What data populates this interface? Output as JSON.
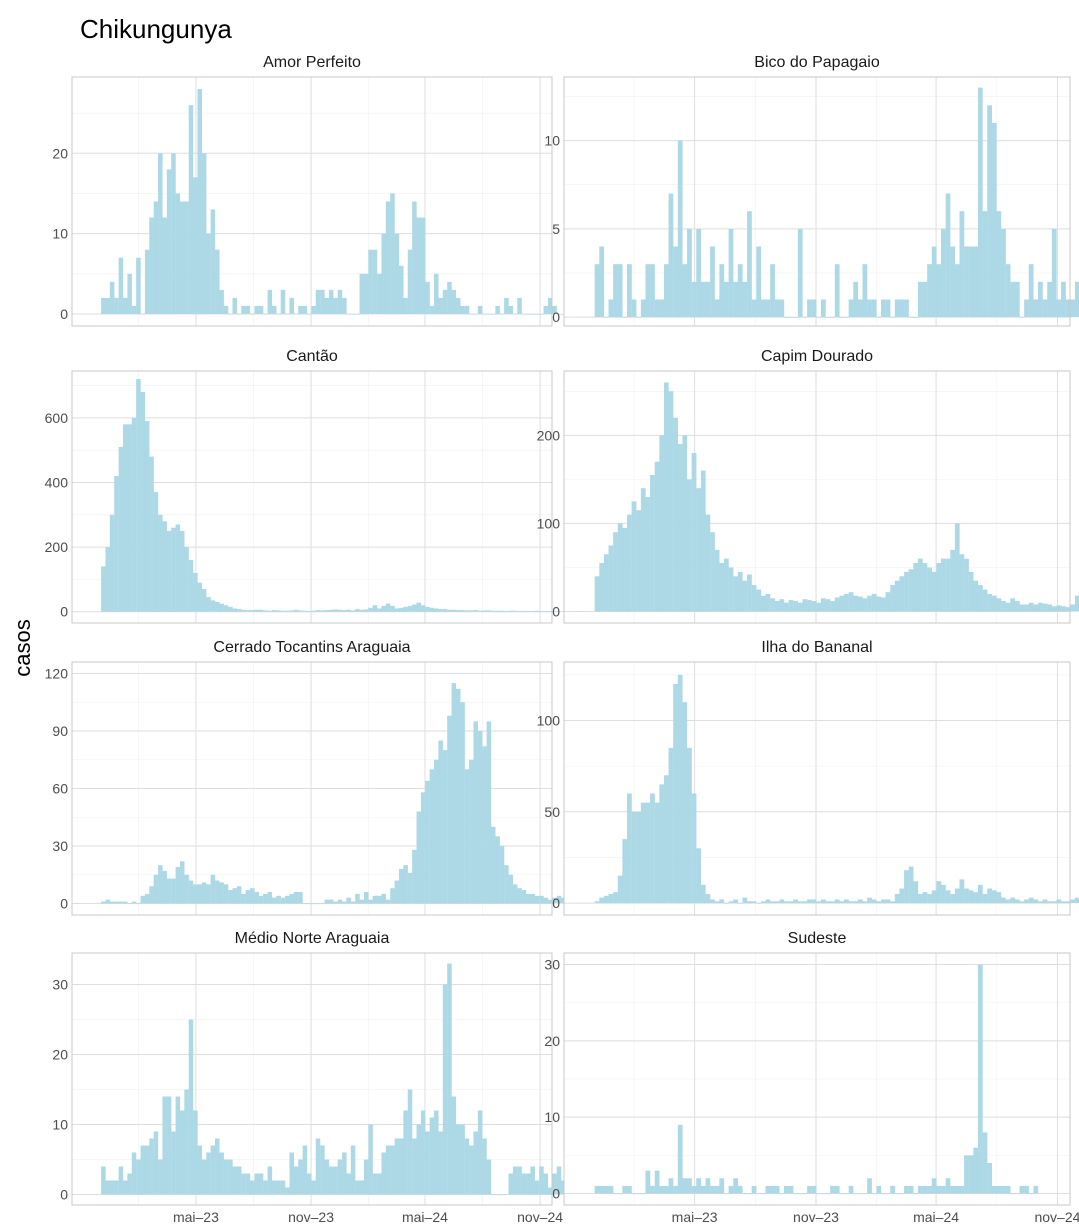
{
  "figure": {
    "title": "Chikungunya",
    "ylabel": "casos"
  },
  "chart_data": {
    "type": "bar",
    "title": "Chikungunya",
    "ylabel": "casos",
    "xlabel": "",
    "x_axis": {
      "ticks": [
        "mai–23",
        "nov–23",
        "mai–24",
        "nov–24"
      ],
      "tick_dates": [
        "2023-05-01",
        "2023-11-01",
        "2024-05-01",
        "2024-11-01"
      ],
      "range": [
        "2022-10-15",
        "2024-11-20"
      ],
      "start_week": "2022-12-04",
      "step_days": 7
    },
    "bar_color": "#ADD8E6",
    "grid": true,
    "panels": [
      {
        "name": "Amor Perfeito",
        "ylim": [
          -1.5,
          29.5
        ],
        "yticks": [
          0,
          10,
          20
        ],
        "values": [
          2,
          2,
          4,
          2,
          7,
          2,
          5,
          1,
          7,
          0,
          8,
          12,
          14,
          20,
          12,
          18,
          20,
          15,
          14,
          14,
          26,
          17,
          28,
          20,
          10,
          13,
          8,
          3,
          1,
          0,
          2,
          0,
          1,
          1,
          0,
          1,
          1,
          0,
          3,
          1,
          0,
          3,
          0,
          2,
          0,
          1,
          1,
          0,
          1,
          3,
          3,
          2,
          3,
          2,
          3,
          2,
          0,
          0,
          0,
          5,
          5,
          8,
          8,
          5,
          10,
          14,
          15,
          10,
          6,
          2,
          8,
          14,
          12,
          12,
          4,
          1,
          5,
          2,
          3,
          4,
          3,
          2,
          1,
          1,
          0,
          0,
          1,
          0,
          0,
          0,
          1,
          0,
          2,
          1,
          0,
          2,
          0,
          0,
          0,
          0,
          0,
          1,
          2,
          1,
          0,
          0,
          0,
          0
        ]
      },
      {
        "name": "Bico do Papagaio",
        "ylim": [
          -0.5,
          13.6
        ],
        "yticks": [
          0,
          5,
          10
        ],
        "values": [
          3,
          4,
          0,
          1,
          3,
          3,
          0,
          3,
          1,
          0,
          1,
          3,
          3,
          1,
          1,
          3,
          7,
          4,
          10,
          3,
          5,
          2,
          5,
          2,
          2,
          4,
          1,
          3,
          2,
          5,
          2,
          3,
          2,
          6,
          1,
          4,
          1,
          1,
          3,
          1,
          1,
          0,
          0,
          0,
          5,
          0,
          1,
          1,
          0,
          1,
          0,
          0,
          3,
          0,
          0,
          1,
          2,
          1,
          3,
          1,
          1,
          0,
          1,
          1,
          0,
          1,
          1,
          1,
          0,
          0,
          2,
          2,
          3,
          4,
          3,
          5,
          7,
          4,
          3,
          6,
          4,
          4,
          4,
          13,
          6,
          12,
          11,
          6,
          5,
          3,
          2,
          2,
          0,
          1,
          3,
          1,
          2,
          1,
          2,
          5,
          1,
          2,
          1,
          1,
          2,
          2,
          2,
          4,
          1,
          0
        ]
      },
      {
        "name": "Cantão",
        "ylim": [
          -35,
          745
        ],
        "yticks": [
          0,
          200,
          400,
          600
        ],
        "values": [
          140,
          200,
          300,
          420,
          510,
          580,
          580,
          600,
          720,
          680,
          590,
          480,
          370,
          300,
          280,
          250,
          260,
          270,
          250,
          200,
          160,
          120,
          90,
          70,
          45,
          35,
          30,
          25,
          20,
          15,
          10,
          8,
          6,
          5,
          5,
          6,
          6,
          4,
          3,
          5,
          4,
          3,
          3,
          4,
          6,
          4,
          3,
          2,
          3,
          5,
          4,
          5,
          6,
          7,
          6,
          5,
          6,
          4,
          8,
          6,
          7,
          12,
          20,
          10,
          18,
          25,
          18,
          10,
          12,
          15,
          18,
          22,
          28,
          20,
          15,
          12,
          10,
          8,
          8,
          6,
          6,
          5,
          5,
          4,
          4,
          5,
          3,
          4,
          4,
          3,
          3,
          3,
          2,
          3,
          3,
          2,
          2,
          2,
          2,
          3,
          2,
          2,
          2,
          2,
          2,
          2,
          1,
          1,
          1,
          1
        ]
      },
      {
        "name": "Capim Dourado",
        "ylim": [
          -13,
          273
        ],
        "yticks": [
          0,
          100,
          200
        ],
        "values": [
          40,
          55,
          65,
          75,
          90,
          100,
          95,
          110,
          125,
          115,
          140,
          130,
          155,
          170,
          200,
          260,
          250,
          220,
          190,
          200,
          150,
          180,
          140,
          160,
          110,
          90,
          70,
          55,
          60,
          50,
          40,
          45,
          35,
          42,
          30,
          25,
          18,
          20,
          15,
          12,
          14,
          10,
          13,
          12,
          10,
          14,
          13,
          12,
          10,
          15,
          14,
          12,
          16,
          18,
          20,
          22,
          18,
          17,
          15,
          18,
          20,
          17,
          16,
          22,
          30,
          35,
          40,
          45,
          48,
          55,
          60,
          55,
          50,
          45,
          55,
          60,
          60,
          70,
          100,
          65,
          60,
          45,
          35,
          30,
          25,
          20,
          18,
          15,
          12,
          10,
          15,
          12,
          8,
          8,
          10,
          8,
          10,
          9,
          8,
          6,
          7,
          6,
          5,
          8,
          18,
          8,
          6,
          5,
          5,
          4,
          6
        ]
      },
      {
        "name": "Cerrado Tocantins Araguaia",
        "ylim": [
          -6,
          126
        ],
        "yticks": [
          0,
          30,
          60,
          90,
          120
        ],
        "values": [
          1,
          2,
          1,
          1,
          1,
          1,
          0,
          1,
          0,
          4,
          5,
          9,
          15,
          20,
          17,
          13,
          13,
          19,
          22,
          15,
          12,
          10,
          10,
          11,
          10,
          15,
          12,
          11,
          10,
          7,
          8,
          9,
          5,
          7,
          8,
          6,
          4,
          5,
          6,
          3,
          4,
          3,
          4,
          5,
          6,
          6,
          0,
          0,
          0,
          0,
          0,
          2,
          2,
          1,
          2,
          1,
          3,
          1,
          5,
          2,
          6,
          2,
          4,
          4,
          5,
          2,
          8,
          12,
          18,
          20,
          16,
          28,
          48,
          58,
          64,
          70,
          75,
          85,
          80,
          98,
          115,
          112,
          105,
          70,
          75,
          95,
          90,
          82,
          95,
          40,
          35,
          30,
          20,
          15,
          10,
          8,
          7,
          5,
          5,
          4,
          4,
          3,
          2,
          3,
          4,
          3,
          2,
          3,
          2,
          2,
          1,
          2,
          2,
          1,
          1,
          2,
          3
        ]
      },
      {
        "name": "Ilha do Bananal",
        "ylim": [
          -6.5,
          132
        ],
        "yticks": [
          0,
          50,
          100
        ],
        "values": [
          1,
          3,
          4,
          5,
          6,
          15,
          35,
          60,
          50,
          50,
          55,
          55,
          60,
          55,
          65,
          70,
          85,
          120,
          125,
          110,
          85,
          60,
          30,
          10,
          5,
          2,
          1,
          2,
          0,
          1,
          2,
          0,
          3,
          1,
          1,
          0,
          1,
          2,
          1,
          1,
          2,
          1,
          1,
          2,
          1,
          1,
          2,
          2,
          1,
          2,
          1,
          1,
          2,
          1,
          2,
          1,
          1,
          2,
          1,
          3,
          2,
          1,
          2,
          2,
          1,
          5,
          8,
          18,
          20,
          12,
          5,
          6,
          5,
          7,
          12,
          10,
          7,
          5,
          8,
          13,
          8,
          7,
          6,
          10,
          5,
          8,
          7,
          6,
          3,
          2,
          3,
          2,
          1,
          2,
          3,
          2,
          1,
          2,
          1,
          1,
          2,
          1,
          1,
          2,
          3,
          3,
          2,
          2,
          3,
          3,
          2,
          2,
          1,
          1,
          1
        ]
      },
      {
        "name": "Médio Norte Araguaia",
        "ylim": [
          -1.5,
          34.5
        ],
        "yticks": [
          0,
          10,
          20,
          30
        ],
        "values": [
          4,
          2,
          2,
          2,
          4,
          2,
          3,
          6,
          5,
          7,
          7,
          8,
          9,
          5,
          14,
          14,
          9,
          14,
          12,
          15,
          25,
          12,
          7,
          5,
          6,
          7,
          8,
          6,
          5,
          5,
          4,
          4,
          3,
          3,
          2,
          3,
          3,
          2,
          4,
          2,
          2,
          2,
          1,
          6,
          4,
          5,
          7,
          3,
          2,
          8,
          7,
          5,
          4,
          4,
          5,
          6,
          3,
          7,
          2,
          2,
          5,
          10,
          3,
          3,
          6,
          7,
          7,
          8,
          8,
          12,
          15,
          8,
          10,
          12,
          9,
          11,
          12,
          9,
          30,
          33,
          14,
          10,
          10,
          8,
          7,
          9,
          12,
          8,
          5,
          0,
          0,
          0,
          0,
          3,
          4,
          4,
          3,
          3,
          4,
          2,
          4,
          3,
          1,
          3,
          4,
          2,
          2,
          5,
          4,
          4,
          2,
          1,
          2
        ]
      },
      {
        "name": "Sudeste",
        "ylim": [
          -1.5,
          31.5
        ],
        "yticks": [
          0,
          10,
          20,
          30
        ],
        "values": [
          1,
          1,
          1,
          1,
          0,
          0,
          1,
          1,
          0,
          0,
          0,
          3,
          1,
          3,
          1,
          1,
          2,
          1,
          9,
          2,
          2,
          1,
          2,
          1,
          2,
          1,
          1,
          2,
          0,
          1,
          2,
          1,
          0,
          0,
          1,
          0,
          0,
          1,
          1,
          1,
          0,
          1,
          1,
          0,
          0,
          0,
          1,
          1,
          0,
          0,
          0,
          1,
          1,
          0,
          0,
          1,
          0,
          0,
          0,
          2,
          0,
          1,
          0,
          0,
          1,
          0,
          0,
          1,
          1,
          0,
          1,
          1,
          1,
          2,
          1,
          1,
          2,
          1,
          1,
          1,
          5,
          5,
          6,
          30,
          8,
          4,
          1,
          1,
          1,
          1,
          0,
          0,
          1,
          1,
          0,
          1
        ]
      }
    ]
  }
}
